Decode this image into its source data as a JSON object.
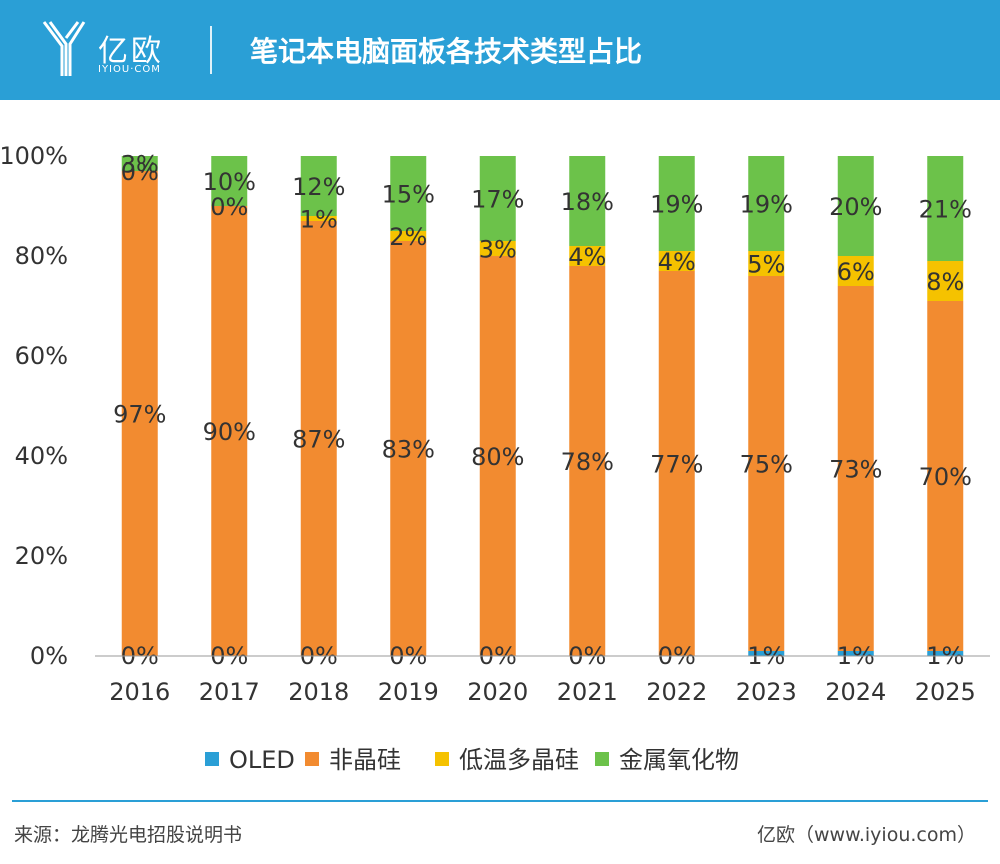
{
  "header": {
    "logo_text": "亿欧",
    "logo_sub": "IYIOU·COM",
    "title": "笔记本电脑面板各技术类型占比"
  },
  "chart_data": {
    "type": "bar",
    "stacked": true,
    "categories": [
      "2016",
      "2017",
      "2018",
      "2019",
      "2020",
      "2021",
      "2022",
      "2023",
      "2024",
      "2025"
    ],
    "series": [
      {
        "name": "OLED",
        "color": "#2a9fd6",
        "values": [
          0,
          0,
          0,
          0,
          0,
          0,
          0,
          1,
          1,
          1
        ],
        "labels": [
          "0%",
          "0%",
          "0%",
          "0%",
          "0%",
          "0%",
          "0%",
          "1%",
          "1%",
          "1%"
        ]
      },
      {
        "name": "非晶硅",
        "color": "#f28b30",
        "values": [
          97,
          90,
          87,
          83,
          80,
          78,
          77,
          75,
          73,
          70
        ],
        "labels": [
          "97%",
          "90%",
          "87%",
          "83%",
          "80%",
          "78%",
          "77%",
          "75%",
          "73%",
          "70%"
        ]
      },
      {
        "name": "低温多晶硅",
        "color": "#f5c200",
        "values": [
          0,
          0,
          1,
          2,
          3,
          4,
          4,
          5,
          6,
          8
        ],
        "labels": [
          "0%",
          "0%",
          "1%",
          "2%",
          "3%",
          "4%",
          "4%",
          "5%",
          "6%",
          "8%"
        ]
      },
      {
        "name": "金属氧化物",
        "color": "#6cc24a",
        "values": [
          3,
          10,
          12,
          15,
          17,
          18,
          19,
          19,
          20,
          21
        ],
        "labels": [
          "3%",
          "10%",
          "12%",
          "15%",
          "17%",
          "18%",
          "19%",
          "19%",
          "20%",
          "21%"
        ]
      }
    ],
    "yticks": [
      "0%",
      "20%",
      "40%",
      "60%",
      "80%",
      "100%"
    ],
    "ylim": [
      0,
      100
    ],
    "grid": false,
    "legend_position": "bottom"
  },
  "footer": {
    "source": "来源：龙腾光电招股说明书",
    "site": "亿欧（www.iyiou.com）"
  }
}
